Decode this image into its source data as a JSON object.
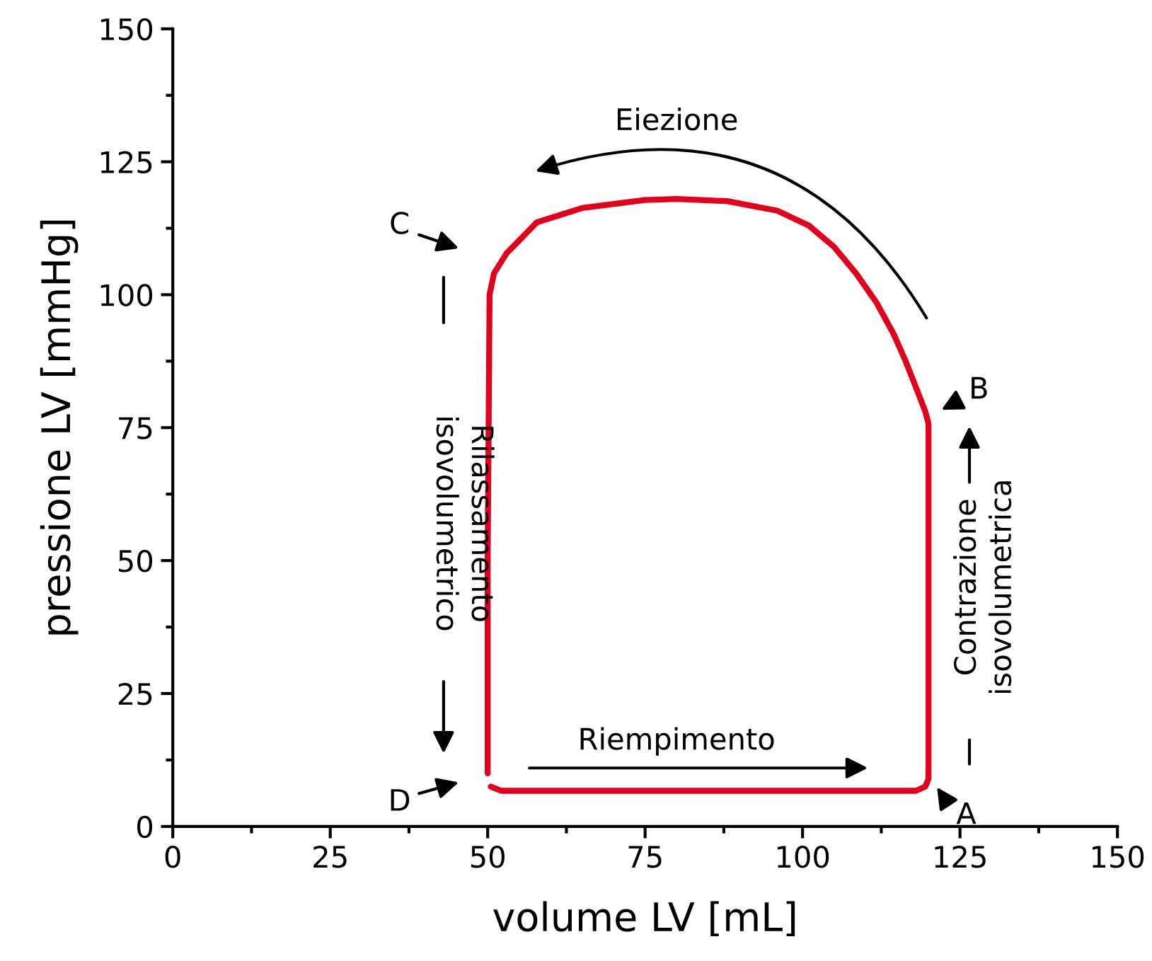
{
  "chart_data": {
    "type": "line",
    "xlabel": "volume LV [mL]",
    "ylabel": "pressione LV [mmHg]",
    "xlim": [
      0,
      150
    ],
    "ylim": [
      0,
      150
    ],
    "xticks": [
      0,
      {
        "value": 12.5,
        "label": null
      },
      25,
      {
        "value": 37.5,
        "label": null
      },
      50,
      {
        "value": 62.5,
        "label": null
      },
      75,
      {
        "value": 87.5,
        "label": null
      },
      100,
      {
        "value": 112.5,
        "label": null
      },
      125,
      {
        "value": 137.5,
        "label": null
      },
      150
    ],
    "yticks": [
      0,
      {
        "value": 12.5,
        "label": null
      },
      25,
      {
        "value": 37.5,
        "label": null
      },
      50,
      {
        "value": 62.5,
        "label": null
      },
      75,
      {
        "value": 87.5,
        "label": null
      },
      100,
      {
        "value": 112.5,
        "label": null
      },
      125,
      {
        "value": 137.5,
        "label": null
      },
      150
    ],
    "grid": false,
    "series": [
      {
        "color": "#e2001a",
        "x": [
          50,
          50,
          50.3,
          51,
          53,
          57.8,
          65,
          75,
          80,
          88,
          96,
          101,
          105,
          108.5,
          111.8,
          114.5,
          116.3,
          118.2,
          119.5,
          120,
          120,
          120,
          119.5,
          118,
          100,
          70,
          52.2,
          50.5
        ],
        "values": [
          10,
          50,
          100,
          104,
          107.8,
          113.6,
          116.3,
          117.8,
          118,
          117.6,
          115.8,
          113,
          109,
          104,
          98.4,
          92.5,
          87.7,
          82,
          78,
          75.7,
          40,
          9,
          7.5,
          6.7,
          6.7,
          6.7,
          6.7,
          7.5
        ]
      }
    ],
    "annotations": [
      "A",
      "B",
      "C",
      "D",
      "Eiezione",
      "Rilassamento\nisovolumetrico",
      "Contrazione\nisovolumetrica",
      "Riempimento"
    ]
  }
}
